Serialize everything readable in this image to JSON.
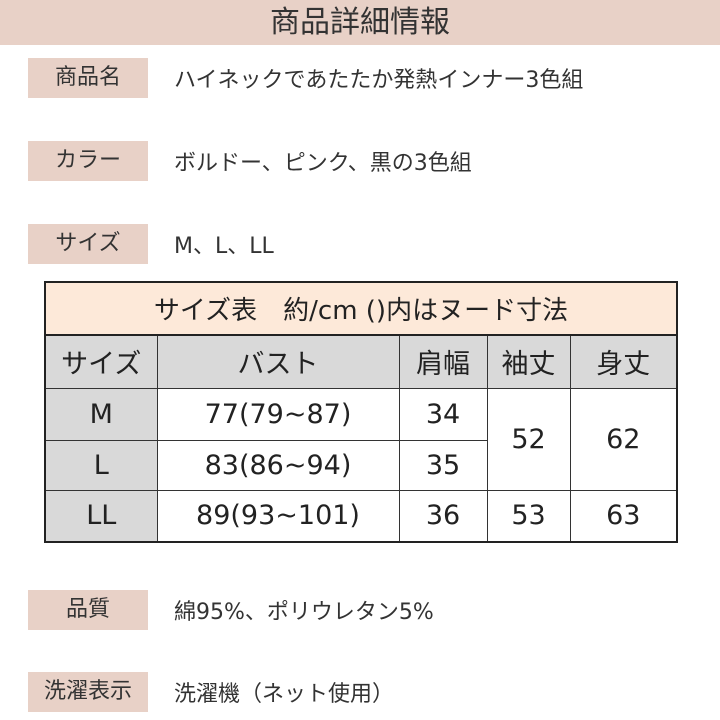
{
  "title": "商品詳細情報",
  "fields": [
    {
      "label": "商品名",
      "value": "ハイネックであたたか発熱インナー3色組"
    },
    {
      "label": "カラー",
      "value": "ボルドー、ピンク、黒の3色組"
    },
    {
      "label": "サイズ",
      "value": "M、L、LL"
    },
    {
      "label": "品質",
      "value": "綿95%、ポリウレタン5%"
    },
    {
      "label": "洗濯表示",
      "value": "洗濯機（ネット使用）"
    }
  ],
  "size_table": {
    "title": "サイズ表　約/cm ()内はヌード寸法",
    "headers": [
      "サイズ",
      "バスト",
      "肩幅",
      "袖丈",
      "身丈"
    ],
    "rows": [
      {
        "size": "M",
        "bust": "77(79~87)",
        "shoulder": "34",
        "sleeve": "52",
        "length": "62"
      },
      {
        "size": "L",
        "bust": "83(86~94)",
        "shoulder": "35"
      },
      {
        "size": "LL",
        "bust": "89(93~101)",
        "shoulder": "36",
        "sleeve": "53",
        "length": "63"
      }
    ]
  },
  "colors": {
    "label_bg": "#e8d1c7",
    "table_title_bg": "#fde9d9",
    "header_bg": "#d9d9d9"
  }
}
